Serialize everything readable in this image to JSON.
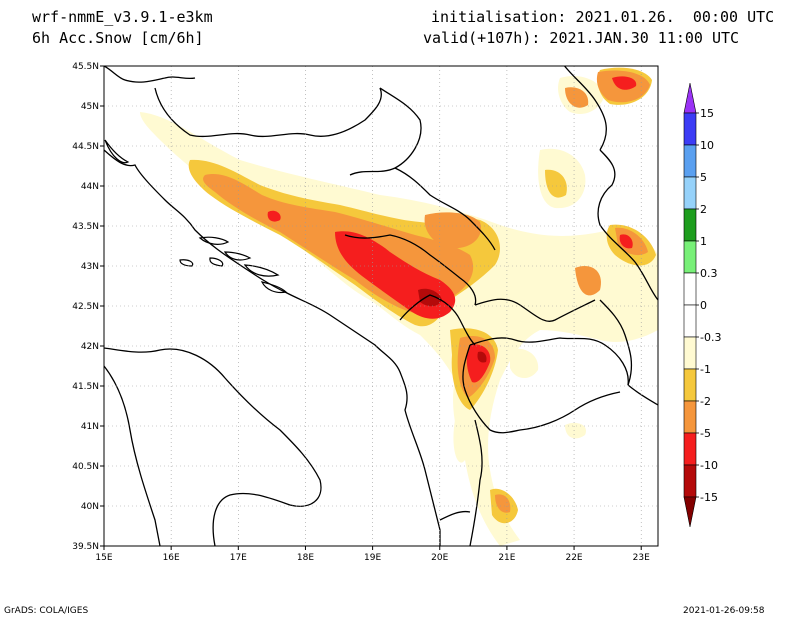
{
  "header": {
    "model": "wrf-nmmE_v3.9.1-e3km",
    "field": "6h Acc.Snow [cm/6h]",
    "init": "initialisation: 2021.01.26.  00:00 UTC",
    "valid": "valid(+107h): 2021.JAN.30 11:00 UTC"
  },
  "axes": {
    "lat_labels": [
      "45.5N",
      "45N",
      "44.5N",
      "44N",
      "43.5N",
      "43N",
      "42.5N",
      "42N",
      "41.5N",
      "41N",
      "40.5N",
      "40N",
      "39.5N"
    ],
    "lon_labels": [
      "15E",
      "16E",
      "17E",
      "18E",
      "19E",
      "20E",
      "21E",
      "22E",
      "23E"
    ],
    "lat_range": [
      39.5,
      45.5
    ],
    "lon_range": [
      15,
      23.25
    ]
  },
  "colorbar": {
    "labels": [
      "15",
      "10",
      "5",
      "2",
      "1",
      "0.3",
      "0",
      "-0.3",
      "-1",
      "-2",
      "-5",
      "-10",
      "-15"
    ],
    "colors": [
      "#9a32f5",
      "#3c3cf5",
      "#5aa0f0",
      "#96d2fa",
      "#1e9e1e",
      "#78f078",
      "#ffffff",
      "#ffffff",
      "#fffad2",
      "#f5c83c",
      "#f5963c",
      "#f51e1e",
      "#b40a0a",
      "#820000"
    ]
  },
  "footer": {
    "left": "GrADS: COLA/IGES",
    "right": "2021-01-26-09:58"
  }
}
